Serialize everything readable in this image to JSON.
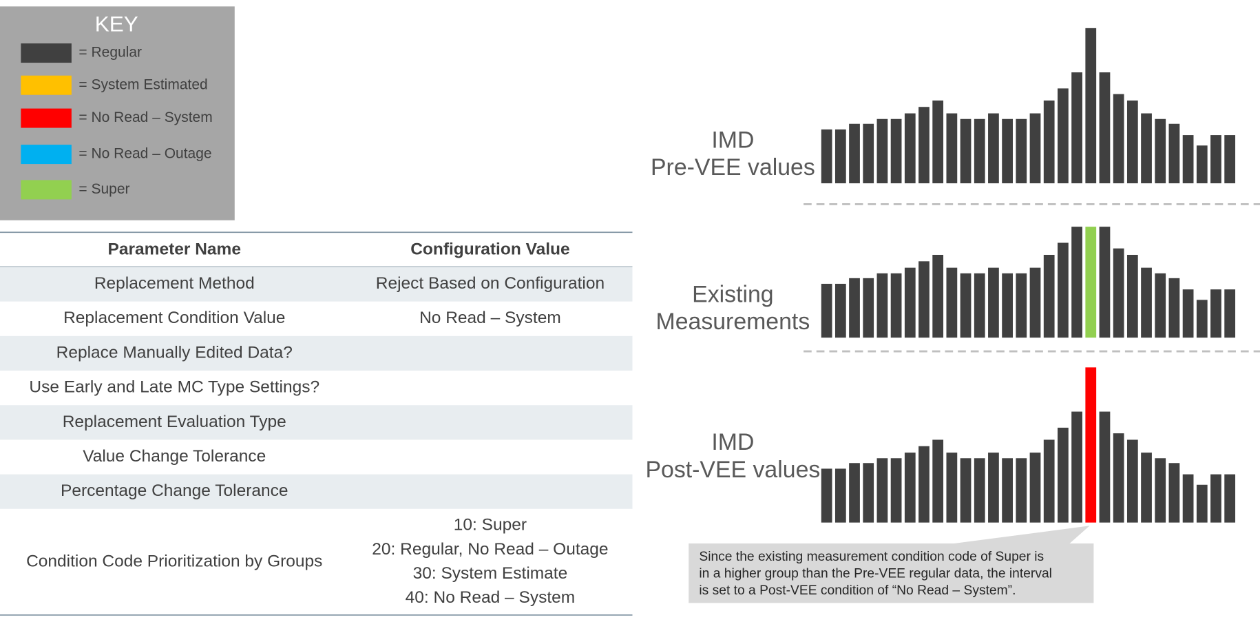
{
  "key": {
    "title": "KEY",
    "items": [
      {
        "label": "= Regular",
        "color": "#404040"
      },
      {
        "label": "= System Estimated",
        "color": "#ffc000"
      },
      {
        "label": "= No Read – System",
        "color": "#ff0000"
      },
      {
        "label": "= No Read – Outage",
        "color": "#00b0f0"
      },
      {
        "label": "= Super",
        "color": "#92d050"
      }
    ]
  },
  "table": {
    "header": [
      "Parameter Name",
      "Configuration Value"
    ],
    "rows": [
      [
        "Replacement Method",
        "Reject Based on Configuration"
      ],
      [
        "Replacement Condition Value",
        "No Read – System"
      ],
      [
        "Replace Manually Edited Data?",
        null
      ],
      [
        "Use Early and Late MC Type Settings?",
        null
      ],
      [
        "Replacement Evaluation Type",
        null
      ],
      [
        "Value Change Tolerance",
        null
      ],
      [
        "Percentage Change Tolerance",
        null
      ],
      [
        "Condition Code Prioritization by Groups",
        [
          "10: Super",
          "20: Regular, No Read – Outage",
          "30: System Estimate",
          "40: No Read – System"
        ]
      ]
    ]
  },
  "charts": [
    {
      "label": [
        "IMD",
        "Pre-VEE values"
      ],
      "color": "#404040",
      "values": [
        67,
        67,
        74,
        74,
        80,
        80,
        87,
        95,
        103,
        87,
        80,
        80,
        87,
        80,
        80,
        87,
        103,
        118,
        138,
        193,
        138,
        111,
        103,
        87,
        80,
        74,
        60,
        47,
        60,
        60
      ]
    },
    {
      "label": [
        "Existing",
        "Measurements"
      ],
      "color": "#404040",
      "highlight": {
        "index": 19,
        "color": "#92d050"
      },
      "values": [
        67,
        67,
        74,
        74,
        80,
        80,
        87,
        95,
        103,
        87,
        80,
        80,
        87,
        80,
        80,
        87,
        103,
        118,
        138,
        138,
        138,
        111,
        103,
        87,
        80,
        74,
        60,
        47,
        60,
        60
      ]
    },
    {
      "label": [
        "IMD",
        "Post-VEE values"
      ],
      "color": "#404040",
      "highlight": {
        "index": 19,
        "color": "#ff0000"
      },
      "values": [
        67,
        67,
        74,
        74,
        80,
        80,
        87,
        95,
        103,
        87,
        80,
        80,
        87,
        80,
        80,
        87,
        103,
        118,
        138,
        193,
        138,
        111,
        103,
        87,
        80,
        74,
        60,
        47,
        60,
        60
      ]
    }
  ],
  "callout": [
    "Since the existing measurement condition code of Super is",
    "in a higher group than the Pre-VEE regular data, the interval",
    "is set to a Post-VEE condition of “No Read – System”."
  ]
}
